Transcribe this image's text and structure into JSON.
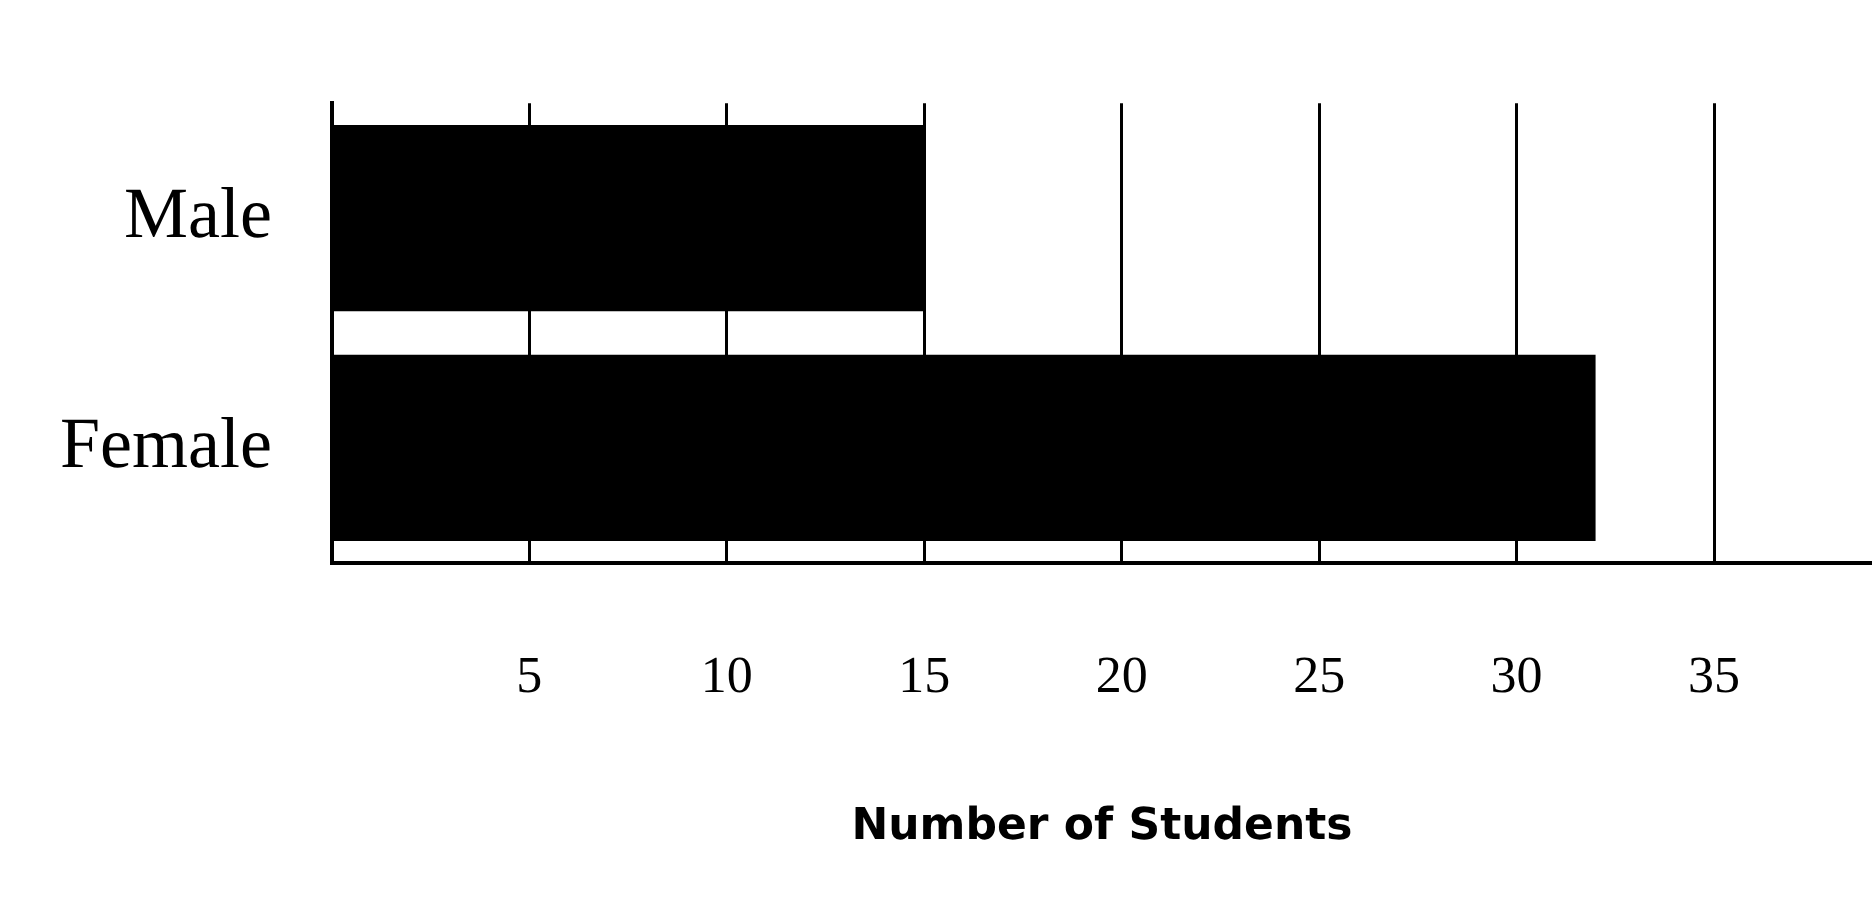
{
  "chart_data": {
    "type": "bar",
    "orientation": "horizontal",
    "categories": [
      "Male",
      "Female"
    ],
    "values": [
      15,
      32
    ],
    "color": "#000000",
    "xlim": [
      0,
      39
    ],
    "xticks": [
      5,
      10,
      15,
      20,
      25,
      30,
      35
    ],
    "xlabel": "Number of Students",
    "grid": "x"
  }
}
